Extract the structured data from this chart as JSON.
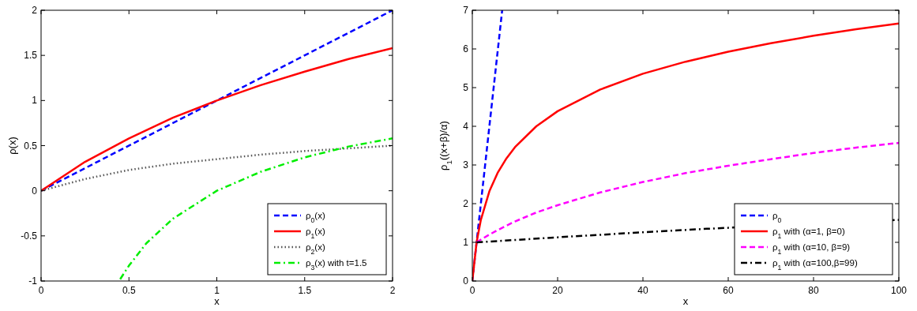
{
  "chart_data": [
    {
      "type": "line",
      "xlabel": "x",
      "ylabel": "ρ(x)",
      "xlim": [
        0,
        2
      ],
      "ylim": [
        -1,
        2
      ],
      "xticks": [
        0,
        0.5,
        1,
        1.5,
        2
      ],
      "yticks": [
        -1,
        -0.5,
        0,
        0.5,
        1,
        1.5,
        2
      ],
      "grid": false,
      "legend": "bottom right",
      "series": [
        {
          "name": "ρ$_{0}$(x)",
          "color": "#0000ff",
          "line_style": "dashed",
          "x": [
            0,
            2
          ],
          "values": [
            0,
            2
          ]
        },
        {
          "name": "ρ$_{1}$(x)",
          "color": "#ff0000",
          "line_style": "solid",
          "x": [
            0,
            0.25,
            0.5,
            0.75,
            1,
            1.25,
            1.5,
            1.75,
            2
          ],
          "values": [
            0,
            0.32,
            0.58,
            0.81,
            1,
            1.17,
            1.32,
            1.46,
            1.58
          ]
        },
        {
          "name": "ρ$_{2}$(x)",
          "color": "#555555",
          "line_style": "dotted",
          "x": [
            0,
            0.25,
            0.5,
            0.75,
            1,
            1.25,
            1.5,
            1.75,
            2
          ],
          "values": [
            0,
            0.13,
            0.23,
            0.3,
            0.35,
            0.4,
            0.44,
            0.47,
            0.5
          ]
        },
        {
          "name": "ρ$_{3}$(x) with t=1.5",
          "color": "#00ee00",
          "line_style": "dashdot",
          "x": [
            0.45,
            0.5,
            0.6,
            0.75,
            1,
            1.25,
            1.5,
            1.75,
            2
          ],
          "values": [
            -0.98,
            -0.83,
            -0.58,
            -0.31,
            0,
            0.21,
            0.37,
            0.49,
            0.58
          ]
        }
      ]
    },
    {
      "type": "line",
      "xlabel": "x",
      "ylabel": "ρ$_{1}$((x+β)/α)",
      "xlim": [
        0,
        100
      ],
      "ylim": [
        0,
        7
      ],
      "xticks": [
        0,
        20,
        40,
        60,
        80,
        100
      ],
      "yticks": [
        0,
        1,
        2,
        3,
        4,
        5,
        6,
        7
      ],
      "grid": false,
      "legend": "bottom right",
      "series": [
        {
          "name": "ρ$_{0}$",
          "color": "#0000ff",
          "line_style": "dashed",
          "x": [
            0,
            7
          ],
          "values": [
            0,
            7
          ]
        },
        {
          "name": "ρ$_{1}$ with (α=1,   β=0)",
          "color": "#ff0000",
          "line_style": "solid",
          "x": [
            0,
            1,
            2,
            4,
            6,
            8,
            10,
            15,
            20,
            30,
            40,
            50,
            60,
            70,
            80,
            90,
            100
          ],
          "values": [
            0,
            1,
            1.58,
            2.32,
            2.81,
            3.17,
            3.46,
            4,
            4.39,
            4.95,
            5.36,
            5.67,
            5.93,
            6.15,
            6.34,
            6.51,
            6.66
          ]
        },
        {
          "name": "ρ$_{1}$ with (α=10, β=9)",
          "color": "#ff00ff",
          "line_style": "dashed",
          "x": [
            1,
            2,
            4,
            6,
            8,
            10,
            15,
            20,
            30,
            40,
            50,
            60,
            70,
            80,
            90,
            100
          ],
          "values": [
            1,
            1.07,
            1.2,
            1.32,
            1.43,
            1.54,
            1.77,
            1.96,
            2.29,
            2.56,
            2.79,
            2.98,
            3.15,
            3.31,
            3.45,
            3.57
          ]
        },
        {
          "name": "ρ$_{1}$ with (α=100,β=99)",
          "color": "#000000",
          "line_style": "dashdot",
          "x": [
            1,
            10,
            20,
            40,
            55,
            100
          ],
          "values": [
            1,
            1.06,
            1.13,
            1.26,
            1.35,
            1.58
          ]
        }
      ]
    }
  ]
}
